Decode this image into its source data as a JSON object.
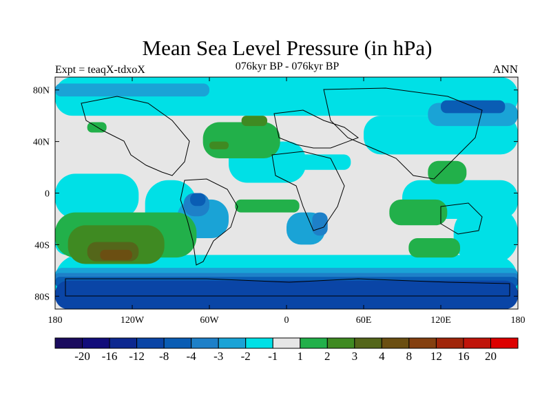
{
  "chart_data": {
    "type": "heatmap",
    "title": "Mean Sea Level Pressure (in hPa)",
    "subtitle": "076kyr BP - 076kyr BP",
    "left_label": "Expt = teaqX-tdxoX",
    "right_label": "ANN",
    "x_axis": {
      "range": [
        -180,
        180
      ],
      "ticks": [
        {
          "value": -180,
          "label": "180"
        },
        {
          "value": -120,
          "label": "120W"
        },
        {
          "value": -60,
          "label": "60W"
        },
        {
          "value": 0,
          "label": "0"
        },
        {
          "value": 60,
          "label": "60E"
        },
        {
          "value": 120,
          "label": "120E"
        },
        {
          "value": 180,
          "label": "180"
        }
      ]
    },
    "y_axis": {
      "range": [
        -90,
        90
      ],
      "ticks": [
        {
          "value": 80,
          "label": "80N"
        },
        {
          "value": 40,
          "label": "40N"
        },
        {
          "value": 0,
          "label": "0"
        },
        {
          "value": -40,
          "label": "40S"
        },
        {
          "value": -80,
          "label": "80S"
        }
      ]
    },
    "colorbar": {
      "colors": [
        "#1a0b5e",
        "#120d7a",
        "#0d2890",
        "#0a45a6",
        "#0a5db4",
        "#1e80c8",
        "#1aa3d6",
        "#00e0e6",
        "#e6e6e6",
        "#22b04a",
        "#3f8a22",
        "#54661a",
        "#6b4f12",
        "#844010",
        "#a0260a",
        "#c0150a",
        "#dd0000"
      ],
      "labels": [
        "-20",
        "-16",
        "-12",
        "-8",
        "-4",
        "-3",
        "-2",
        "-1",
        "1",
        "2",
        "3",
        "4",
        "8",
        "12",
        "16",
        "20"
      ]
    },
    "fields": [
      {
        "level": "-1",
        "color": "#00e0e6",
        "regions": [
          {
            "lon": -180,
            "lat": 90,
            "w": 360,
            "h": 30
          },
          {
            "lon": -180,
            "lat": -48,
            "w": 360,
            "h": 42
          },
          {
            "lon": -180,
            "lat": 15,
            "w": 65,
            "h": 35
          },
          {
            "lon": -110,
            "lat": 10,
            "w": 40,
            "h": 55
          },
          {
            "lon": -45,
            "lat": 40,
            "w": 60,
            "h": 32
          },
          {
            "lon": -10,
            "lat": 30,
            "w": 60,
            "h": 12
          },
          {
            "lon": 90,
            "lat": 10,
            "w": 90,
            "h": 30
          },
          {
            "lon": -180,
            "lat": -28,
            "w": 40,
            "h": 20
          },
          {
            "lon": 60,
            "lat": 60,
            "w": 120,
            "h": 30
          },
          {
            "lon": 130,
            "lat": -10,
            "w": 50,
            "h": 45
          }
        ]
      },
      {
        "level": "-2",
        "color": "#1aa3d6",
        "regions": [
          {
            "lon": -180,
            "lat": -58,
            "w": 360,
            "h": 12
          },
          {
            "lon": -85,
            "lat": -5,
            "w": 40,
            "h": 30
          },
          {
            "lon": 0,
            "lat": -15,
            "w": 30,
            "h": 25
          },
          {
            "lon": -180,
            "lat": 85,
            "w": 120,
            "h": 10
          },
          {
            "lon": 110,
            "lat": 70,
            "w": 70,
            "h": 18
          }
        ]
      },
      {
        "level": "-3",
        "color": "#1e80c8",
        "regions": [
          {
            "lon": -180,
            "lat": -62,
            "w": 360,
            "h": 6
          },
          {
            "lon": -80,
            "lat": 0,
            "w": 20,
            "h": 18
          },
          {
            "lon": 20,
            "lat": -15,
            "w": 12,
            "h": 18
          }
        ]
      },
      {
        "level": "-4",
        "color": "#0a5db4",
        "regions": [
          {
            "lon": -180,
            "lat": -65,
            "w": 360,
            "h": 8
          },
          {
            "lon": -75,
            "lat": 0,
            "w": 12,
            "h": 10
          },
          {
            "lon": 120,
            "lat": 72,
            "w": 50,
            "h": 10
          }
        ]
      },
      {
        "level": "-8",
        "color": "#0a45a6",
        "regions": [
          {
            "lon": -180,
            "lat": -68,
            "w": 360,
            "h": 22
          }
        ]
      },
      {
        "level": "2",
        "color": "#22b04a",
        "regions": [
          {
            "lon": -180,
            "lat": -15,
            "w": 110,
            "h": 35
          },
          {
            "lon": -65,
            "lat": 55,
            "w": 60,
            "h": 28
          },
          {
            "lon": -40,
            "lat": -5,
            "w": 50,
            "h": 10
          },
          {
            "lon": 80,
            "lat": -5,
            "w": 45,
            "h": 20
          },
          {
            "lon": 95,
            "lat": -35,
            "w": 40,
            "h": 15
          },
          {
            "lon": 110,
            "lat": 25,
            "w": 30,
            "h": 18
          },
          {
            "lon": -155,
            "lat": 55,
            "w": 15,
            "h": 8
          }
        ]
      },
      {
        "level": "3",
        "color": "#3f8a22",
        "regions": [
          {
            "lon": -170,
            "lat": -25,
            "w": 75,
            "h": 30
          },
          {
            "lon": -35,
            "lat": 60,
            "w": 20,
            "h": 8
          },
          {
            "lon": -60,
            "lat": 40,
            "w": 15,
            "h": 6
          }
        ]
      },
      {
        "level": "4",
        "color": "#54661a",
        "regions": [
          {
            "lon": -155,
            "lat": -38,
            "w": 40,
            "h": 15
          }
        ]
      },
      {
        "level": "8",
        "color": "#6b4f12",
        "regions": [
          {
            "lon": -145,
            "lat": -44,
            "w": 25,
            "h": 8
          }
        ]
      }
    ]
  }
}
